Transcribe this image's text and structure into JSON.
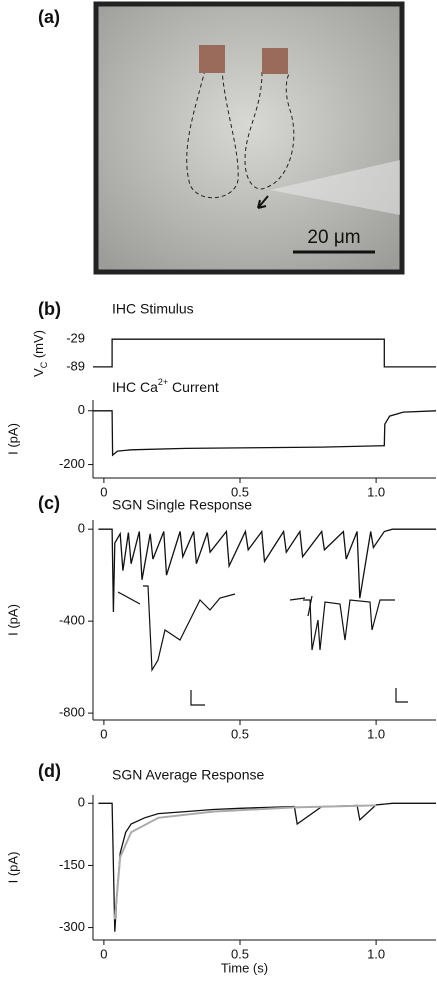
{
  "figure": {
    "panel_a": {
      "label": "(a)",
      "scale_bar": "20 μm"
    }
  },
  "chart_data": [
    {
      "type": "line",
      "panel_label": "(b)",
      "title": "IHC Stimulus",
      "ylabel": {
        "main": "V",
        "sub": "C",
        "unit": " (mV)"
      },
      "ylim": [
        -100,
        -20
      ],
      "yticks": [
        -89,
        -29
      ],
      "series": [
        {
          "color": "#111111",
          "x": [
            -0.04,
            0.03,
            0.03,
            1.03,
            1.03,
            1.22
          ],
          "values": [
            -89,
            -89,
            -29,
            -29,
            -89,
            -89
          ]
        }
      ]
    },
    {
      "type": "line",
      "title": {
        "main": "IHC Ca",
        "sup": "2+",
        "rest": " Current"
      },
      "ylabel": "I (pA)",
      "xlim": [
        -0.04,
        1.22
      ],
      "xticks": [
        0,
        0.5,
        {
          "value": 1,
          "label": "1.0"
        }
      ],
      "ylim": [
        -250,
        40
      ],
      "yticks": [
        0,
        -200
      ],
      "series": [
        {
          "color": "#111111",
          "x": [
            -0.04,
            0.03,
            0.032,
            0.05,
            0.1,
            0.3,
            0.5,
            0.8,
            1.03,
            1.032,
            1.05,
            1.1,
            1.22
          ],
          "values": [
            0,
            0,
            -165,
            -150,
            -145,
            -140,
            -138,
            -135,
            -130,
            -50,
            -20,
            -5,
            0
          ]
        }
      ]
    },
    {
      "type": "line",
      "panel_label": "(c)",
      "title": "SGN Single Response",
      "ylabel": "I (pA)",
      "xlim": [
        -0.04,
        1.22
      ],
      "xticks": [
        0,
        0.5,
        {
          "value": 1,
          "label": "1.0"
        }
      ],
      "ylim": [
        -830,
        40
      ],
      "yticks": [
        0,
        -400,
        -800
      ],
      "series": [
        {
          "color": "#111111",
          "x": [
            -0.02,
            0.03,
            0.035,
            0.04,
            0.06,
            0.07,
            0.09,
            0.1,
            0.13,
            0.14,
            0.17,
            0.18,
            0.22,
            0.23,
            0.28,
            0.29,
            0.33,
            0.34,
            0.38,
            0.39,
            0.45,
            0.46,
            0.52,
            0.53,
            0.58,
            0.59,
            0.66,
            0.67,
            0.72,
            0.73,
            0.8,
            0.81,
            0.88,
            0.89,
            0.93,
            0.94,
            0.98,
            0.99,
            1.03,
            1.06,
            1.22
          ],
          "values": [
            0,
            0,
            -360,
            -60,
            -20,
            -180,
            -15,
            -150,
            -10,
            -220,
            -20,
            -130,
            -10,
            -200,
            -10,
            -120,
            -10,
            -150,
            -15,
            -100,
            -10,
            -160,
            -10,
            -90,
            -10,
            -140,
            -10,
            -100,
            -10,
            -120,
            -10,
            -90,
            -10,
            -130,
            -10,
            -300,
            -10,
            -80,
            -10,
            0,
            0
          ]
        }
      ]
    },
    {
      "type": "line",
      "panel_label": "(d)",
      "title": "SGN Average Response",
      "ylabel": "I (pA)",
      "xlabel": "Time (s)",
      "xlim": [
        -0.04,
        1.22
      ],
      "xticks": [
        0,
        0.5,
        {
          "value": 1,
          "label": "1.0"
        }
      ],
      "ylim": [
        -330,
        20
      ],
      "yticks": [
        0,
        -150,
        -300
      ],
      "series": [
        {
          "color": "#111111",
          "x": [
            -0.02,
            0.03,
            0.035,
            0.04,
            0.05,
            0.06,
            0.08,
            0.1,
            0.15,
            0.2,
            0.3,
            0.4,
            0.5,
            0.6,
            0.7,
            0.71,
            0.8,
            0.9,
            0.93,
            0.94,
            1.0,
            1.03,
            1.06,
            1.22
          ],
          "values": [
            0,
            0,
            -150,
            -310,
            -200,
            -120,
            -70,
            -50,
            -35,
            -25,
            -20,
            -15,
            -12,
            -10,
            -8,
            -50,
            -8,
            -6,
            -5,
            -40,
            -4,
            -2,
            0,
            0
          ]
        },
        {
          "color": "#aaaaaa",
          "x": [
            0.04,
            0.06,
            0.1,
            0.2,
            0.4,
            0.7,
            1.0
          ],
          "values": [
            -280,
            -130,
            -70,
            -35,
            -20,
            -10,
            -5
          ]
        }
      ]
    }
  ]
}
